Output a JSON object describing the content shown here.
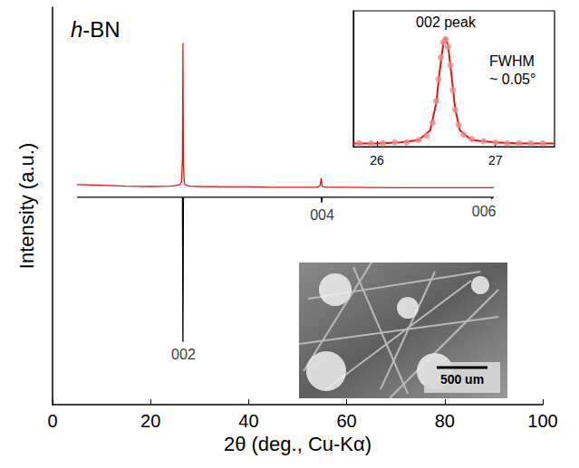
{
  "chart_data": [
    {
      "type": "line",
      "title": "h-BN",
      "x_label": "2θ (deg., Cu-Kα)",
      "y_label": "Intensity (a.u.)",
      "xlim": [
        0,
        100
      ],
      "xticks": [
        0,
        20,
        40,
        60,
        80,
        100
      ],
      "ylim": [
        0,
        100
      ],
      "tick_labels": "x",
      "series": [
        {
          "color": "#ee1111",
          "x": [
            5,
            10,
            15,
            20,
            24,
            25,
            26,
            26.3,
            26.5,
            26.6,
            26.7,
            26.9,
            27.2,
            28,
            30,
            35,
            40,
            45,
            50,
            54,
            54.6,
            54.8,
            55,
            55.6,
            60,
            70,
            80,
            90
          ],
          "values": [
            55.4,
            55.2,
            55.0,
            54.9,
            55.0,
            55.1,
            55.4,
            56.0,
            62.0,
            91.0,
            60.0,
            55.6,
            55.2,
            55.0,
            54.9,
            54.8,
            54.8,
            54.7,
            54.7,
            54.7,
            55.2,
            57.0,
            55.0,
            54.7,
            54.7,
            54.6,
            54.6,
            54.6
          ]
        },
        {
          "color": "#000000",
          "x": [
            5,
            26.5,
            26.6,
            26.7,
            54.8,
            54.9,
            55.0,
            89.5,
            89.6,
            89.7,
            90
          ],
          "values": [
            52.2,
            52.2,
            15.8,
            52.2,
            52.2,
            50.8,
            52.2,
            52.2,
            51.8,
            52.2,
            52.2
          ]
        }
      ],
      "annotations": [
        {
          "text": "002",
          "x": 26.7,
          "y": 15.8
        },
        {
          "text": "004",
          "x": 55.0,
          "y": 50.8
        },
        {
          "text": "006",
          "x": 88.0,
          "y": 51.8
        }
      ]
    },
    {
      "type": "line",
      "title": "002 peak",
      "annotation": "FWHM ~ 0.05°",
      "xlim": [
        25.8,
        27.5
      ],
      "xticks": [
        26,
        27
      ],
      "ylim": [
        0,
        1.25
      ],
      "tick_labels": "x",
      "series": [
        {
          "type": "scatter",
          "color": "#f08a8a",
          "marker": "circle",
          "x": [
            25.85,
            25.95,
            26.05,
            26.15,
            26.25,
            26.35,
            26.42,
            26.47,
            26.5,
            26.52,
            26.54,
            26.56,
            26.58,
            26.6,
            26.62,
            26.64,
            26.66,
            26.69,
            26.73,
            26.8,
            26.9,
            27.0,
            27.1,
            27.2,
            27.3,
            27.4
          ],
          "values": [
            0.03,
            0.03,
            0.03,
            0.04,
            0.04,
            0.06,
            0.1,
            0.22,
            0.42,
            0.62,
            0.82,
            0.96,
            0.99,
            0.92,
            0.75,
            0.52,
            0.34,
            0.2,
            0.11,
            0.07,
            0.05,
            0.04,
            0.03,
            0.03,
            0.03,
            0.03
          ]
        },
        {
          "type": "line",
          "color": "#ee1111",
          "x": [
            25.8,
            26.0,
            26.2,
            26.35,
            26.45,
            26.5,
            26.53,
            26.56,
            26.58,
            26.6,
            26.63,
            26.66,
            26.7,
            26.8,
            27.0,
            27.2,
            27.5
          ],
          "values": [
            0.03,
            0.03,
            0.04,
            0.06,
            0.15,
            0.4,
            0.7,
            0.95,
            1.0,
            0.93,
            0.65,
            0.35,
            0.15,
            0.06,
            0.04,
            0.03,
            0.03
          ]
        }
      ]
    }
  ],
  "image": {
    "scale_label": "500 um"
  }
}
